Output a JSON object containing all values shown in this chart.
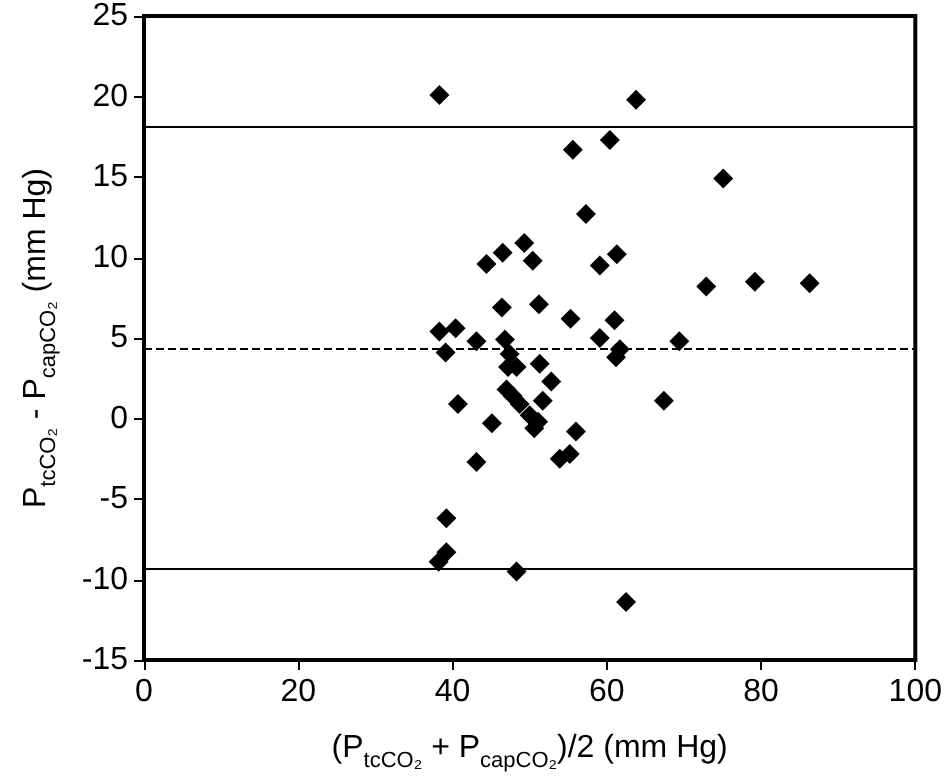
{
  "chart_data": {
    "type": "scatter",
    "xlabel": "(P$_{tcCO₂}$ + P$_{capCO₂}$)/2 (mm Hg)",
    "ylabel": "P$_{tcCO₂}$ - P$_{capCO₂}$ (mm Hg)",
    "xlim": [
      0,
      100
    ],
    "xticks": [
      0,
      20,
      40,
      60,
      80,
      100
    ],
    "ylim": [
      -15,
      25
    ],
    "yticks": [
      -15,
      -10,
      -5,
      0,
      5,
      10,
      15,
      20,
      25
    ],
    "grid": false,
    "marker": "diamond",
    "series": [
      {
        "color": "#000000",
        "x": [
          38.3,
          38.3,
          40.4,
          39.1,
          43.1,
          63.8,
          55.6,
          60.4,
          75.1,
          57.3,
          49.3,
          44.4,
          46.5,
          50.4,
          59.1,
          61.3,
          72.9,
          79.2,
          86.3,
          46.4,
          51.2,
          55.3,
          61.0,
          46.8,
          59.1,
          69.4,
          61.7,
          61.2,
          40.7,
          43.1,
          39.2,
          39.2,
          38.2,
          47.2,
          48.3,
          51.3,
          52.8,
          47.0,
          47.8,
          48.7,
          51.7,
          45.1,
          50.0,
          51.1,
          50.6,
          56.0,
          53.9,
          55.2,
          67.4,
          48.3,
          62.5,
          47.4
        ],
        "values": [
          20.1,
          5.4,
          5.6,
          4.1,
          4.8,
          19.8,
          16.7,
          17.3,
          14.9,
          12.7,
          10.9,
          9.6,
          10.3,
          9.8,
          9.5,
          10.2,
          8.2,
          8.5,
          8.4,
          6.9,
          7.1,
          6.2,
          6.1,
          4.9,
          5.0,
          4.8,
          4.3,
          3.8,
          0.9,
          -2.7,
          -6.2,
          -8.3,
          -8.9,
          3.2,
          3.2,
          3.4,
          2.3,
          1.8,
          1.4,
          0.9,
          1.1,
          -0.3,
          0.2,
          -0.2,
          -0.6,
          -0.8,
          -2.5,
          -2.2,
          1.1,
          -9.5,
          -11.4,
          4.0
        ]
      }
    ],
    "ref_lines": [
      {
        "axis": "y",
        "value": 18.1,
        "color": "#000000",
        "line_style": "solid"
      },
      {
        "axis": "y",
        "value": 4.4,
        "color": "#000000",
        "line_style": "dashed"
      },
      {
        "axis": "y",
        "value": -9.3,
        "color": "#000000",
        "line_style": "solid"
      }
    ]
  }
}
